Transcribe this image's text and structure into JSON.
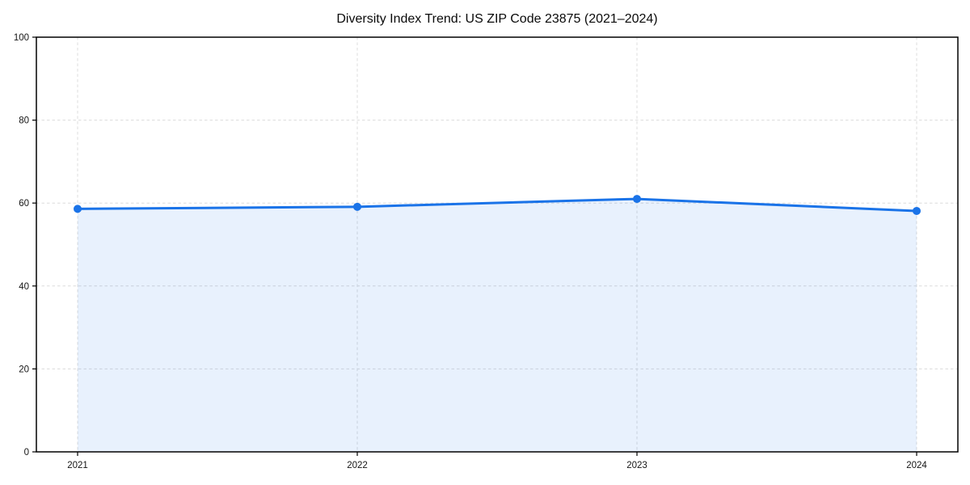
{
  "chart_data": {
    "type": "area",
    "title": "Diversity Index Trend: US ZIP Code 23875 (2021–2024)",
    "x": [
      "2021",
      "2022",
      "2023",
      "2024"
    ],
    "series": [
      {
        "name": "Diversity Index",
        "values": [
          58.6,
          59.1,
          61.0,
          58.1
        ]
      }
    ],
    "xlabel": "",
    "ylabel": "",
    "ylim": [
      0,
      100
    ],
    "yticks": [
      0,
      20,
      40,
      60,
      80,
      100
    ],
    "grid": true,
    "grid_style": "dashed",
    "legend_position": "none",
    "colors": {
      "line": "#1a73e8",
      "marker": "#1a73e8",
      "fill": "rgba(26,115,232,0.10)",
      "grid": "#dcdcdc",
      "spine": "#000000",
      "tick_label": "#151515",
      "title": "#0a0a0a",
      "background": "#ffffff"
    }
  }
}
